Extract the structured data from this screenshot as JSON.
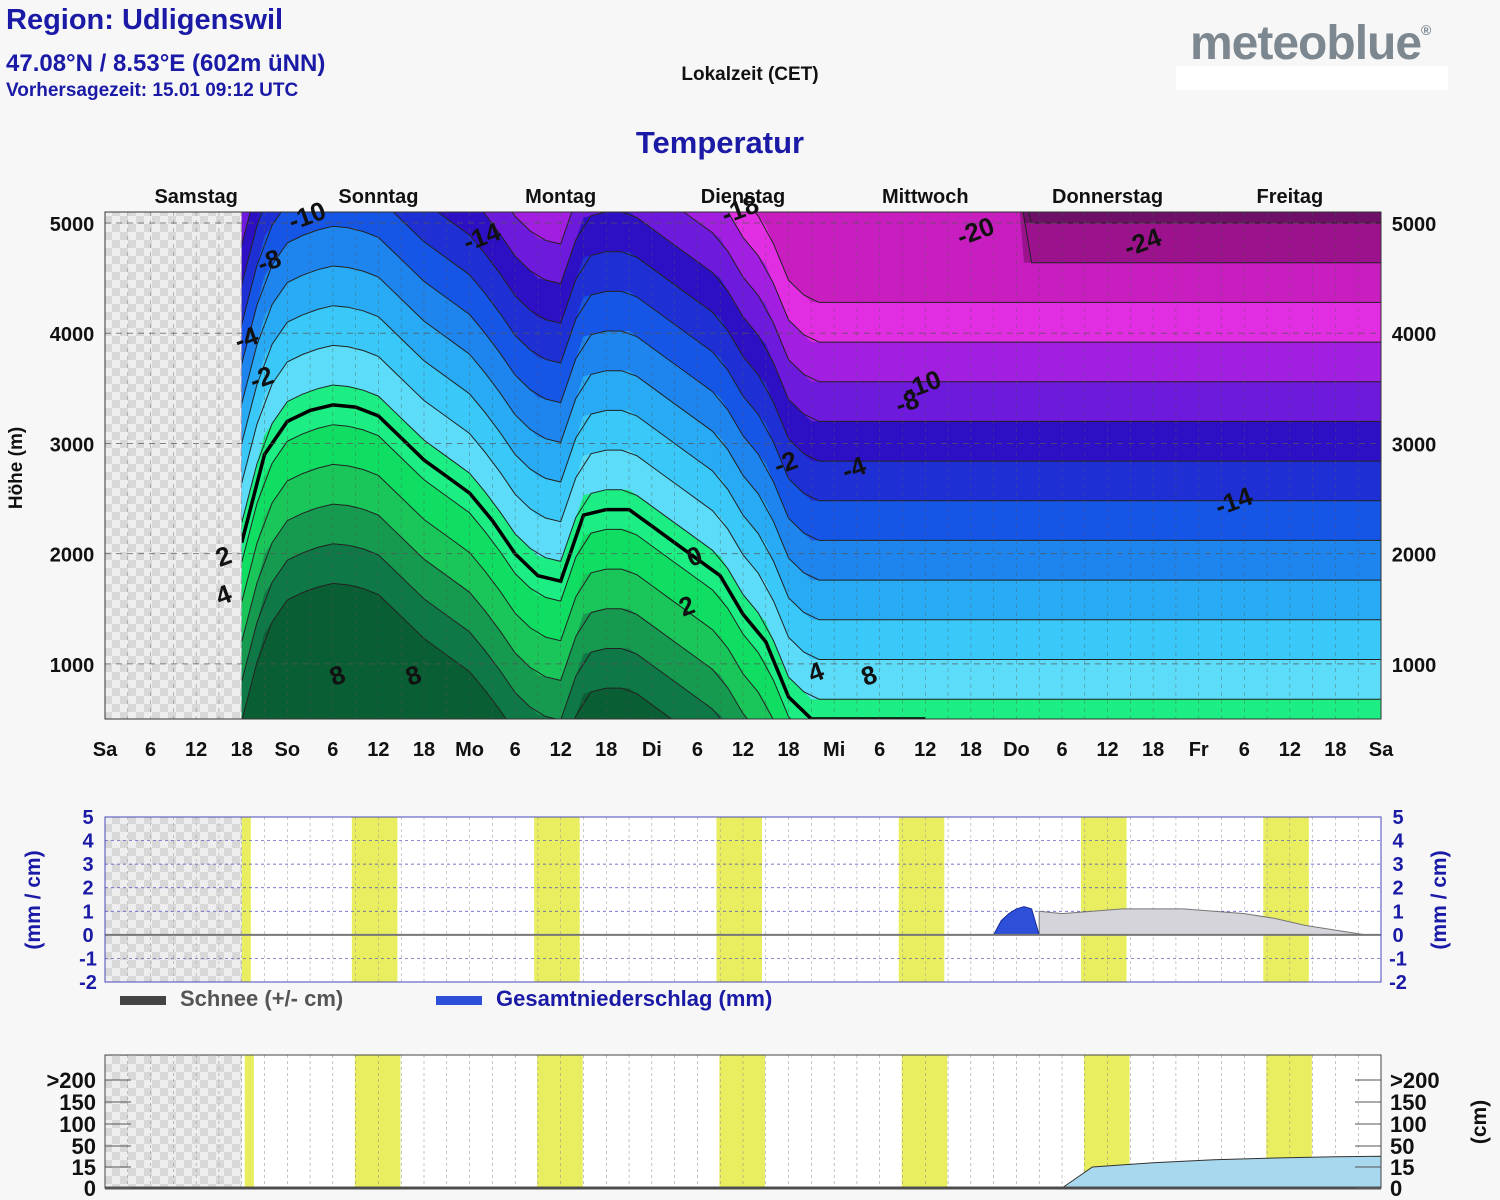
{
  "header": {
    "region": "Region: Udligenswil",
    "coordinates": "47.08°N / 8.53°E (602m üNN)",
    "forecast_time": "Vorhersagezeit: 15.01 09:12 UTC",
    "timezone": "Lokalzeit (CET)",
    "logo_text": "meteoblue",
    "logo_mark": "®"
  },
  "colors": {
    "accent_blue": "#1a1aa6",
    "daylight_band": "#e8ee60",
    "snow_fill": "#a8d8ee",
    "snow_change": "#d4d4da",
    "precip": "#2e4fd8"
  },
  "chart_data": [
    {
      "type": "heatmap",
      "title": "Temperatur",
      "ylabel": "Höhe (m)",
      "ylim": [
        500,
        5100
      ],
      "yticks": [
        1000,
        2000,
        3000,
        4000,
        5000
      ],
      "day_labels": [
        "Samstag",
        "Sonntag",
        "Montag",
        "Dienstag",
        "Mittwoch",
        "Donnerstag",
        "Freitag"
      ],
      "x_tick_labels": [
        "Sa",
        "6",
        "12",
        "18",
        "So",
        "6",
        "12",
        "18",
        "Mo",
        "6",
        "12",
        "18",
        "Di",
        "6",
        "12",
        "18",
        "Mi",
        "6",
        "12",
        "18",
        "Do",
        "6",
        "12",
        "18",
        "Fr",
        "6",
        "12",
        "18",
        "Sa"
      ],
      "contour_levels": [
        -26,
        -24,
        -22,
        -20,
        -18,
        -16,
        -14,
        -12,
        -10,
        -8,
        -6,
        -4,
        -2,
        0,
        2,
        4,
        6,
        8,
        10
      ],
      "freezing_level_hours": [
        18,
        21,
        24,
        27,
        30,
        33,
        36,
        39,
        42,
        45,
        48,
        51,
        54,
        57,
        60,
        63,
        66,
        69,
        72,
        75,
        78,
        81,
        84,
        87,
        90,
        93,
        96,
        99,
        102,
        105,
        108
      ],
      "freezing_level_m": [
        2100,
        2900,
        3200,
        3300,
        3350,
        3330,
        3250,
        3050,
        2850,
        2700,
        2550,
        2300,
        2000,
        1800,
        1750,
        2350,
        2400,
        2400,
        2250,
        2100,
        1950,
        1800,
        1450,
        1200,
        700,
        500,
        500,
        500,
        500,
        500,
        500
      ],
      "contour_labels": [
        {
          "text": "-10",
          "hour": 27,
          "alt": 4990
        },
        {
          "text": "-8",
          "hour": 22,
          "alt": 4580
        },
        {
          "text": "-14",
          "hour": 50,
          "alt": 4800
        },
        {
          "text": "-18",
          "hour": 84,
          "alt": 5050
        },
        {
          "text": "-20",
          "hour": 115,
          "alt": 4850
        },
        {
          "text": "-24",
          "hour": 137,
          "alt": 4750
        },
        {
          "text": "-4",
          "hour": 19,
          "alt": 3880
        },
        {
          "text": "-2",
          "hour": 21,
          "alt": 3520
        },
        {
          "text": "-10",
          "hour": 108,
          "alt": 3460
        },
        {
          "text": "-8",
          "hour": 106,
          "alt": 3300
        },
        {
          "text": "-2",
          "hour": 90,
          "alt": 2750
        },
        {
          "text": "-4",
          "hour": 99,
          "alt": 2700
        },
        {
          "text": "-14",
          "hour": 149,
          "alt": 2400
        },
        {
          "text": "2",
          "hour": 16,
          "alt": 1900
        },
        {
          "text": "4",
          "hour": 16,
          "alt": 1550
        },
        {
          "text": "0",
          "hour": 78,
          "alt": 1900
        },
        {
          "text": "2",
          "hour": 77,
          "alt": 1450
        },
        {
          "text": "8",
          "hour": 31,
          "alt": 820
        },
        {
          "text": "8",
          "hour": 41,
          "alt": 820
        },
        {
          "text": "4",
          "hour": 94,
          "alt": 850
        },
        {
          "text": "8",
          "hour": 101,
          "alt": 820
        }
      ]
    },
    {
      "type": "area",
      "ylabel": "(mm / cm)",
      "ylim": [
        -2,
        5
      ],
      "yticks": [
        "5",
        "4",
        "3",
        "2",
        "1",
        "0",
        "-1",
        "-2"
      ],
      "legend": [
        "Schnee (+/- cm)",
        "Gesamtniederschlag (mm)"
      ],
      "precip_hours": [
        117,
        118,
        119,
        120,
        121,
        122,
        123
      ],
      "precip_mm": [
        0,
        0.6,
        0.9,
        1.1,
        1.2,
        1.1,
        0
      ],
      "snow_change_hours": [
        123,
        126,
        130,
        134,
        138,
        142,
        146,
        150,
        154,
        158,
        162,
        166
      ],
      "snow_change_cm": [
        1.0,
        0.9,
        1.0,
        1.1,
        1.1,
        1.1,
        1.0,
        0.9,
        0.7,
        0.4,
        0.2,
        0
      ]
    },
    {
      "type": "area",
      "ylabel": "(cm)",
      "yticks": [
        ">200",
        "150",
        "100",
        "50",
        "15",
        "0"
      ],
      "snow_depth_hours": [
        126,
        130,
        138,
        146,
        154,
        162,
        168
      ],
      "snow_depth_cm": [
        0,
        15,
        22,
        27,
        30,
        32,
        33
      ]
    }
  ]
}
